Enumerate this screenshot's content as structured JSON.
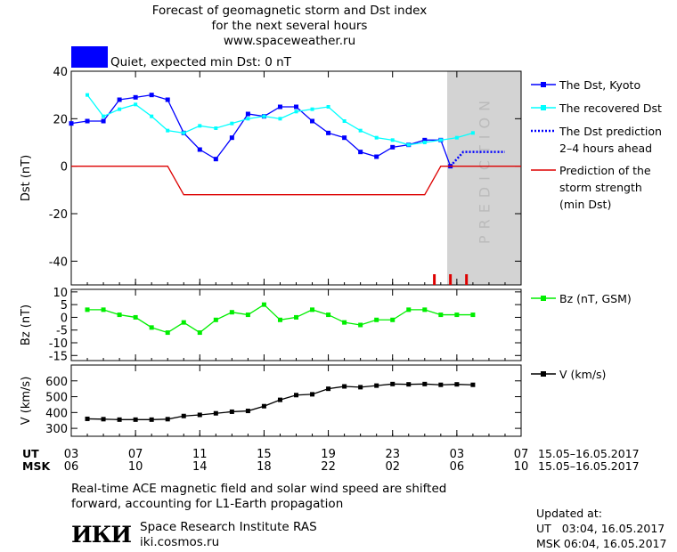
{
  "header": {
    "line1": "Forecast of geomagnetic storm and Dst index",
    "line2": "for the next several hours",
    "line3": "www.spaceweather.ru"
  },
  "status": {
    "text": "Quiet, expected min Dst: 0 nT",
    "color": "#0000ff"
  },
  "colors": {
    "dst": "#0000ff",
    "recovered": "#00ffff",
    "prediction": "#0000ff",
    "strength": "#dd0000",
    "bz": "#00ee00",
    "v": "#000000",
    "shade": "#d3d3d3"
  },
  "chart_data": {
    "type": "line",
    "x_unit": "hours UT from 03:00 15.05.2017",
    "x_range": [
      0,
      28
    ],
    "time_axis": {
      "ticks_x": [
        0,
        4,
        8,
        12,
        16,
        20,
        24,
        28
      ],
      "ut_row_label": "UT",
      "msk_row_label": "MSK",
      "ut_labels": [
        "03",
        "07",
        "11",
        "15",
        "19",
        "23",
        "03",
        "07"
      ],
      "msk_labels": [
        "06",
        "10",
        "14",
        "18",
        "22",
        "02",
        "06",
        "10"
      ],
      "date_label_ut": "15.05–16.05.2017",
      "date_label_msk": "15.05–16.05.2017"
    },
    "prediction_zone": {
      "x_start": 23.4,
      "x_end": 28,
      "label": "PREDICTION"
    },
    "panels": [
      {
        "id": "dst",
        "ylabel": "Dst (nT)",
        "ylim": [
          -50,
          40
        ],
        "yticks": [
          -40,
          -20,
          0,
          20,
          40
        ],
        "series": [
          {
            "name": "The Dst, Kyoto",
            "marker": "square",
            "x": [
              0,
              1,
              2,
              3,
              4,
              5,
              6,
              7,
              8,
              9,
              10,
              11,
              12,
              13,
              14,
              15,
              16,
              17,
              18,
              19,
              20,
              21,
              22,
              23,
              23.6
            ],
            "y": [
              18,
              19,
              19,
              28,
              29,
              30,
              28,
              14,
              7,
              3,
              12,
              22,
              21,
              25,
              25,
              19,
              14,
              12,
              6,
              4,
              8,
              9,
              11,
              11,
              0
            ]
          },
          {
            "name": "The recovered Dst",
            "marker": "small-square",
            "x": [
              1,
              2,
              3,
              4,
              5,
              6,
              7,
              8,
              9,
              10,
              11,
              12,
              13,
              14,
              15,
              16,
              17,
              18,
              19,
              20,
              21,
              22,
              23,
              24,
              25
            ],
            "y": [
              30,
              21,
              24,
              26,
              21,
              15,
              14,
              17,
              16,
              18,
              20,
              21,
              20,
              23,
              24,
              25,
              19,
              15,
              12,
              11,
              9,
              10,
              11,
              12,
              14
            ]
          },
          {
            "name": "The Dst prediction 2–4 hours ahead",
            "line_style": "dotted",
            "x": [
              23.6,
              24.4,
              27
            ],
            "y": [
              0,
              6,
              6
            ]
          },
          {
            "name": "Prediction of the storm strength (min Dst)",
            "x": [
              0,
              6,
              7,
              22,
              23,
              28
            ],
            "y": [
              0,
              0,
              -12,
              -12,
              0,
              0
            ]
          }
        ],
        "markers_x": [
          22.6,
          23.6,
          24.6
        ]
      },
      {
        "id": "bz",
        "ylabel": "Bz (nT)",
        "ylim": [
          -17,
          11
        ],
        "yticks": [
          -15,
          -10,
          -5,
          0,
          5,
          10
        ],
        "series": [
          {
            "name": "Bz (nT, GSM)",
            "x": [
              1,
              2,
              3,
              4,
              5,
              6,
              7,
              8,
              9,
              10,
              11,
              12,
              13,
              14,
              15,
              16,
              17,
              18,
              19,
              20,
              21,
              22,
              23,
              24,
              25
            ],
            "y": [
              3,
              3,
              1,
              0,
              -4,
              -6,
              -2,
              -6,
              -1,
              2,
              1,
              5,
              -1,
              0,
              3,
              1,
              -2,
              -3,
              -1,
              -1,
              3,
              3,
              1,
              1,
              1
            ]
          }
        ]
      },
      {
        "id": "v",
        "ylabel": "V (km/s)",
        "ylim": [
          250,
          700
        ],
        "yticks": [
          300,
          400,
          500,
          600
        ],
        "series": [
          {
            "name": "V (km/s)",
            "x": [
              1,
              2,
              3,
              4,
              5,
              6,
              7,
              8,
              9,
              10,
              11,
              12,
              13,
              14,
              15,
              16,
              17,
              18,
              19,
              20,
              21,
              22,
              23,
              24,
              25
            ],
            "y": [
              360,
              358,
              355,
              355,
              355,
              358,
              378,
              385,
              395,
              405,
              410,
              440,
              480,
              510,
              515,
              550,
              565,
              560,
              570,
              580,
              578,
              580,
              575,
              578,
              575
            ]
          }
        ]
      }
    ]
  },
  "footnote": {
    "line1": "Real-time ACE magnetic field and solar wind speed are shifted",
    "line2": "forward, accounting for L1-Earth propagation"
  },
  "institute": {
    "logo_text": "ИКИ",
    "name": "Space Research Institute RAS",
    "url": "iki.cosmos.ru"
  },
  "updated": {
    "title": "Updated at:",
    "ut_label": "UT",
    "ut_value": "03:04, 16.05.2017",
    "msk_label": "MSK",
    "msk_value": "06:04, 16.05.2017"
  }
}
